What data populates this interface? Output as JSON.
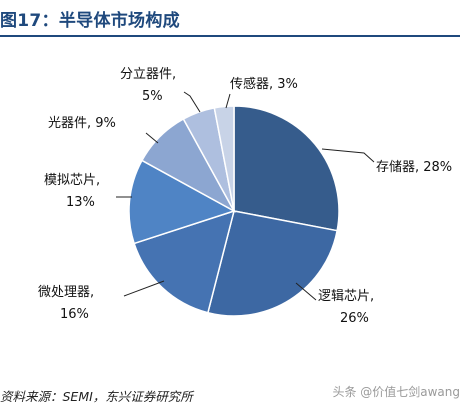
{
  "title": "图17：半导体市场构成",
  "source": "资料来源：SEMI，东兴证券研究所",
  "watermark": "头条 @价值七剑awang",
  "chart_data": {
    "type": "pie",
    "title": "图17：半导体市场构成",
    "slices": [
      {
        "name": "存储器",
        "value": 28,
        "label_lines": [
          "存储器, 28%"
        ],
        "color": "#365c8c"
      },
      {
        "name": "逻辑芯片",
        "value": 26,
        "label_lines": [
          "逻辑芯片,",
          "26%"
        ],
        "color": "#3d68a3"
      },
      {
        "name": "微处理器",
        "value": 16,
        "label_lines": [
          "微处理器,",
          "16%"
        ],
        "color": "#4573b2"
      },
      {
        "name": "模拟芯片",
        "value": 13,
        "label_lines": [
          "模拟芯片,",
          "13%"
        ],
        "color": "#4f84c5"
      },
      {
        "name": "光器件",
        "value": 9,
        "label_lines": [
          "光器件, 9%"
        ],
        "color": "#8ca6d1"
      },
      {
        "name": "分立器件",
        "value": 5,
        "label_lines": [
          "分立器件,",
          "5%"
        ],
        "color": "#aebfdf"
      },
      {
        "name": "传感器",
        "value": 3,
        "label_lines": [
          "传感器, 3%"
        ],
        "color": "#c8d3e7"
      }
    ],
    "legend": "none"
  }
}
